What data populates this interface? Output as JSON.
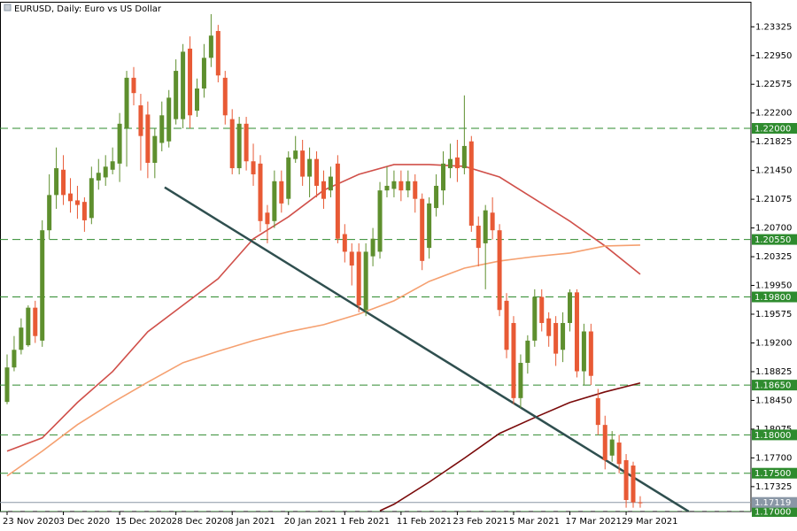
{
  "chart_data": {
    "type": "candlestick",
    "title": "EURUSD, Daily:  Euro vs US Dollar",
    "categories": [
      "23 Nov 2020",
      null,
      null,
      null,
      null,
      null,
      null,
      null,
      "3 Dec 2020",
      null,
      null,
      null,
      null,
      null,
      null,
      null,
      "15 Dec 2020",
      null,
      null,
      null,
      null,
      null,
      null,
      null,
      "28 Dec 2020",
      null,
      null,
      null,
      null,
      null,
      null,
      null,
      "8 Jan 2021",
      null,
      null,
      null,
      null,
      null,
      null,
      null,
      "20 Jan 2021",
      null,
      null,
      null,
      null,
      null,
      null,
      null,
      "1 Feb 2021",
      null,
      null,
      null,
      null,
      null,
      null,
      null,
      "11 Feb 2021",
      null,
      null,
      null,
      null,
      null,
      null,
      null,
      "23 Feb 2021",
      null,
      null,
      null,
      null,
      null,
      null,
      null,
      "5 Mar 2021",
      null,
      null,
      null,
      null,
      null,
      null,
      null,
      "17 Mar 2021",
      null,
      null,
      null,
      null,
      null,
      null,
      null,
      "29 Mar 2021",
      null,
      null
    ],
    "open": [
      1.1843,
      1.1888,
      1.1911,
      1.1917,
      1.1966,
      1.1923,
      1.2067,
      1.2113,
      1.2146,
      1.2115,
      1.2106,
      1.2104,
      1.2083,
      1.2132,
      1.2136,
      1.2146,
      1.2154,
      1.22,
      1.2266,
      1.223,
      1.2218,
      1.2155,
      1.2181,
      1.2183,
      1.2212,
      1.2212,
      1.2304,
      1.2223,
      1.2252,
      1.2292,
      1.2327,
      1.2266,
      1.2212,
      1.2148,
      1.2206,
      1.2157,
      1.2154,
      1.209,
      1.2079,
      1.2131,
      1.2108,
      1.216,
      1.2171,
      1.2137,
      1.216,
      1.2131,
      1.2119,
      1.2154,
      1.2062,
      1.2039,
      1.2039,
      1.1963,
      1.2033,
      1.2039,
      1.2119,
      1.2121,
      1.2131,
      1.2119,
      1.2131,
      1.2108,
      1.2044,
      1.2096,
      1.2119,
      1.2148,
      1.2162,
      1.2148,
      1.2183,
      1.2073,
      1.205,
      1.209,
      1.2067,
      1.1975,
      1.1946,
      1.1848,
      1.1894,
      1.1923,
      1.198,
      1.1952,
      1.1946,
      1.1911,
      1.1946,
      1.1986,
      1.1883,
      1.1935,
      1.1848,
      1.1813,
      1.1773,
      1.179,
      1.1767,
      1.176,
      1.1712
    ],
    "high": [
      1.1905,
      1.1929,
      1.1952,
      1.1969,
      1.1975,
      1.208,
      1.214,
      1.2175,
      1.2165,
      1.2135,
      1.2125,
      1.211,
      1.215,
      1.216,
      1.2165,
      1.2175,
      1.222,
      1.2275,
      1.228,
      1.2245,
      1.2235,
      1.22,
      1.2235,
      1.225,
      1.229,
      1.231,
      1.232,
      1.2265,
      1.231,
      1.2349,
      1.2335,
      1.2275,
      1.2225,
      1.2215,
      1.2215,
      1.218,
      1.2165,
      1.21,
      1.2145,
      1.2145,
      1.217,
      1.219,
      1.2185,
      1.2175,
      1.217,
      1.2145,
      1.215,
      1.2165,
      1.2075,
      1.205,
      1.205,
      1.205,
      1.207,
      1.213,
      1.215,
      1.2145,
      1.2145,
      1.2145,
      1.214,
      1.2115,
      1.211,
      1.214,
      1.217,
      1.218,
      1.2185,
      1.2243,
      1.219,
      1.2085,
      1.21,
      1.211,
      1.2075,
      1.1985,
      1.1955,
      1.1905,
      1.193,
      1.199,
      1.199,
      1.196,
      1.1955,
      1.196,
      1.199,
      1.199,
      1.1945,
      1.1945,
      1.186,
      1.1825,
      1.1805,
      1.18,
      1.1775,
      1.1765,
      1.172
    ],
    "low": [
      1.184,
      1.1883,
      1.1905,
      1.1915,
      1.192,
      1.1915,
      1.2055,
      1.2095,
      1.21,
      1.209,
      1.2082,
      1.2065,
      1.2075,
      1.212,
      1.2125,
      1.214,
      1.213,
      1.215,
      1.223,
      1.2145,
      1.2135,
      1.2135,
      1.217,
      1.2175,
      1.2205,
      1.22,
      1.22,
      1.2215,
      1.224,
      1.228,
      1.226,
      1.2205,
      1.214,
      1.214,
      1.2145,
      1.2125,
      1.2065,
      1.205,
      1.207,
      1.209,
      1.21,
      1.2155,
      1.2125,
      1.211,
      1.211,
      1.2095,
      1.211,
      1.205,
      1.2025,
      1.1995,
      1.196,
      1.1955,
      1.202,
      1.203,
      1.211,
      1.211,
      1.2105,
      1.211,
      1.209,
      1.2015,
      1.203,
      1.2085,
      1.21,
      1.2135,
      1.213,
      1.214,
      1.2065,
      1.202,
      1.199,
      1.2055,
      1.1955,
      1.19,
      1.184,
      1.1835,
      1.188,
      1.1915,
      1.1935,
      1.1915,
      1.189,
      1.1895,
      1.1935,
      1.1875,
      1.1865,
      1.1865,
      1.18,
      1.1755,
      1.1765,
      1.175,
      1.1705,
      1.1705,
      1.1705
    ],
    "close": [
      1.1888,
      1.1911,
      1.194,
      1.1966,
      1.1929,
      1.2067,
      1.2113,
      1.2148,
      1.2113,
      1.2105,
      1.21,
      1.208,
      1.2135,
      1.2142,
      1.215,
      1.2157,
      1.2206,
      1.2266,
      1.2246,
      1.219,
      1.2155,
      1.219,
      1.2217,
      1.224,
      1.2275,
      1.23,
      1.2217,
      1.2252,
      1.2292,
      1.2321,
      1.2269,
      1.2217,
      1.2148,
      1.2206,
      1.2157,
      1.214,
      1.2079,
      1.2075,
      1.2131,
      1.2102,
      1.2162,
      1.2171,
      1.2137,
      1.216,
      1.2125,
      1.2108,
      1.2137,
      1.2056,
      1.2039,
      1.2021,
      1.1969,
      1.2039,
      1.2056,
      1.2119,
      1.2125,
      1.2131,
      1.2119,
      1.2131,
      1.2108,
      1.2027,
      1.2102,
      1.2125,
      1.2154,
      1.216,
      1.2148,
      1.2177,
      1.2073,
      1.2044,
      1.2093,
      1.2067,
      1.1963,
      1.1911,
      1.1848,
      1.1894,
      1.1923,
      1.198,
      1.1946,
      1.1929,
      1.1906,
      1.1946,
      1.1986,
      1.1883,
      1.1935,
      1.1877,
      1.1813,
      1.1767,
      1.1794,
      1.1762,
      1.1715,
      1.1712,
      1.17119
    ],
    "up_color": "#5e8f2e",
    "down_color": "#e85a35",
    "series": [
      {
        "color": "#d0504a",
        "x": [
          0,
          5,
          10,
          15,
          20,
          25,
          30,
          35,
          40,
          45,
          50,
          55,
          60,
          65,
          70,
          75,
          80,
          85,
          90
        ],
        "values": [
          1.17788,
          1.17961,
          1.18423,
          1.18827,
          1.19346,
          1.19692,
          1.20038,
          1.20558,
          1.20846,
          1.21192,
          1.214,
          1.21527,
          1.21527,
          1.21504,
          1.21365,
          1.21077,
          1.20788,
          1.20465,
          1.20096
        ]
      },
      {
        "color": "#f5a070",
        "x": [
          0,
          5,
          10,
          15,
          20,
          25,
          30,
          35,
          40,
          45,
          50,
          55,
          60,
          65,
          70,
          75,
          80,
          85,
          90
        ],
        "values": [
          1.17465,
          1.17788,
          1.18134,
          1.18423,
          1.18688,
          1.18942,
          1.19092,
          1.1923,
          1.19346,
          1.19438,
          1.19577,
          1.1975,
          1.20003,
          1.20176,
          1.20269,
          1.20327,
          1.20373,
          1.20465,
          1.20477
        ]
      },
      {
        "color": "#7a0a0a",
        "x": [
          53,
          55,
          60,
          65,
          70,
          75,
          80,
          85,
          90
        ],
        "values": [
          1.1701,
          1.17095,
          1.17384,
          1.17696,
          1.18019,
          1.18226,
          1.18423,
          1.18561,
          1.18677
        ]
      }
    ],
    "trendline": {
      "color": "#2f4f4f",
      "x": [
        22.4,
        96.9
      ],
      "values": [
        1.2123,
        1.17
      ]
    },
    "ylim": [
      1.17,
      1.2364
    ],
    "yticks": [
      1.23325,
      {
        "value": 1.2295,
        "label": "1.22950"
      },
      1.22575,
      {
        "value": 1.222,
        "label": "1.22200"
      },
      1.21825,
      {
        "value": 1.2145,
        "label": "1.21450"
      },
      1.21075,
      {
        "value": 1.207,
        "label": "1.20700"
      },
      1.20325,
      {
        "value": 1.1995,
        "label": "1.19950"
      },
      1.19575,
      {
        "value": 1.192,
        "label": "1.19200"
      },
      1.18825,
      {
        "value": 1.1845,
        "label": "1.18450"
      },
      1.18075,
      {
        "value": 1.177,
        "label": "1.17700"
      },
      1.17325
    ],
    "levels": [
      {
        "value": 1.22,
        "label": "1.22000"
      },
      {
        "value": 1.2055,
        "label": "1.20550"
      },
      {
        "value": 1.198,
        "label": "1.19800"
      },
      {
        "value": 1.1865,
        "label": "1.18650"
      },
      {
        "value": 1.18,
        "label": "1.18000"
      },
      {
        "value": 1.175,
        "label": "1.17500"
      },
      {
        "value": 1.17,
        "label": "1.17000"
      }
    ],
    "level_color": "#2e8b2e",
    "current_price": 1.17119,
    "current_color": "#8a97a6"
  }
}
